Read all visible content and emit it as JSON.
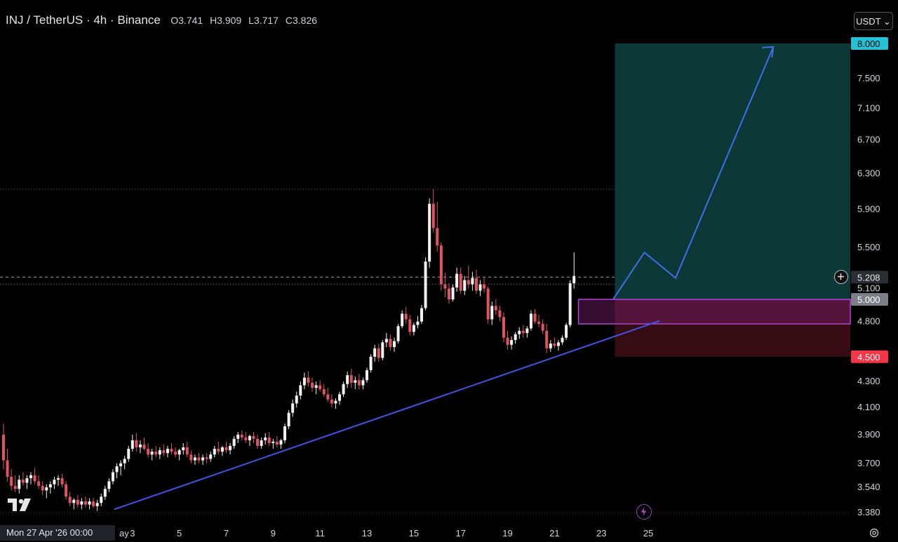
{
  "header": {
    "symbol": "INJ / TetherUS · 4h · Binance",
    "open_label": "O",
    "open": "3.741",
    "high_label": "H",
    "high": "3.909",
    "low_label": "L",
    "low": "3.717",
    "close_label": "C",
    "close": "3.826"
  },
  "currency_selector": "USDT ⌄",
  "crosshair_date": "Mon 27 Apr '26   00:00",
  "colors": {
    "up": "#f2f2f2",
    "down": "#e0535f",
    "trendline": "#3f55e8",
    "target_zone": "#0d3b3a",
    "stop_zone": "#3a0d14",
    "entry_zone_border": "#b044d6",
    "projection": "#3d6fe8",
    "target_badge": "#22c3d6",
    "stop_badge": "#f23645"
  },
  "icons": [
    "tradingview-logo-icon",
    "flash-icon",
    "add-alert-icon",
    "settings-gear-icon"
  ],
  "chart_data": {
    "type": "candlestick",
    "timeframe": "4h",
    "y_scale": "log",
    "ylim": [
      3.35,
      8.15
    ],
    "xlim": [
      27.0,
      26.0
    ],
    "y_ticks": [
      "8.000",
      "7.500",
      "7.100",
      "6.700",
      "6.300",
      "5.900",
      "5.500",
      "5.208",
      "5.100",
      "5.000",
      "4.800",
      "4.500",
      "4.300",
      "4.100",
      "3.900",
      "3.700",
      "3.540",
      "3.380"
    ],
    "x_ticks": [
      {
        "label": "ay",
        "day": 1
      },
      {
        "label": "3",
        "day": 3
      },
      {
        "label": "5",
        "day": 5
      },
      {
        "label": "7",
        "day": 7
      },
      {
        "label": "9",
        "day": 9
      },
      {
        "label": "11",
        "day": 11
      },
      {
        "label": "13",
        "day": 13
      },
      {
        "label": "15",
        "day": 15
      },
      {
        "label": "17",
        "day": 17
      },
      {
        "label": "19",
        "day": 19
      },
      {
        "label": "21",
        "day": 21
      },
      {
        "label": "23",
        "day": 23
      },
      {
        "label": "25",
        "day": 25
      }
    ],
    "current_price": "5.208",
    "candles": [
      {
        "o": 3.9,
        "h": 3.98,
        "l": 3.66,
        "c": 3.72
      },
      {
        "o": 3.72,
        "h": 3.8,
        "l": 3.58,
        "c": 3.61
      },
      {
        "o": 3.61,
        "h": 3.66,
        "l": 3.52,
        "c": 3.55
      },
      {
        "o": 3.55,
        "h": 3.62,
        "l": 3.51,
        "c": 3.53
      },
      {
        "o": 3.53,
        "h": 3.62,
        "l": 3.5,
        "c": 3.59
      },
      {
        "o": 3.59,
        "h": 3.64,
        "l": 3.55,
        "c": 3.57
      },
      {
        "o": 3.57,
        "h": 3.62,
        "l": 3.53,
        "c": 3.6
      },
      {
        "o": 3.6,
        "h": 3.64,
        "l": 3.56,
        "c": 3.62
      },
      {
        "o": 3.62,
        "h": 3.67,
        "l": 3.56,
        "c": 3.58
      },
      {
        "o": 3.58,
        "h": 3.62,
        "l": 3.53,
        "c": 3.55
      },
      {
        "o": 3.55,
        "h": 3.58,
        "l": 3.49,
        "c": 3.52
      },
      {
        "o": 3.52,
        "h": 3.56,
        "l": 3.47,
        "c": 3.54
      },
      {
        "o": 3.54,
        "h": 3.58,
        "l": 3.5,
        "c": 3.56
      },
      {
        "o": 3.56,
        "h": 3.61,
        "l": 3.53,
        "c": 3.59
      },
      {
        "o": 3.59,
        "h": 3.62,
        "l": 3.55,
        "c": 3.6
      },
      {
        "o": 3.6,
        "h": 3.63,
        "l": 3.54,
        "c": 3.56
      },
      {
        "o": 3.56,
        "h": 3.58,
        "l": 3.46,
        "c": 3.48
      },
      {
        "o": 3.48,
        "h": 3.51,
        "l": 3.42,
        "c": 3.44
      },
      {
        "o": 3.44,
        "h": 3.47,
        "l": 3.4,
        "c": 3.46
      },
      {
        "o": 3.46,
        "h": 3.49,
        "l": 3.41,
        "c": 3.43
      },
      {
        "o": 3.43,
        "h": 3.47,
        "l": 3.4,
        "c": 3.45
      },
      {
        "o": 3.45,
        "h": 3.48,
        "l": 3.41,
        "c": 3.43
      },
      {
        "o": 3.43,
        "h": 3.47,
        "l": 3.4,
        "c": 3.45
      },
      {
        "o": 3.45,
        "h": 3.47,
        "l": 3.41,
        "c": 3.42
      },
      {
        "o": 3.42,
        "h": 3.46,
        "l": 3.39,
        "c": 3.44
      },
      {
        "o": 3.44,
        "h": 3.5,
        "l": 3.42,
        "c": 3.48
      },
      {
        "o": 3.48,
        "h": 3.55,
        "l": 3.46,
        "c": 3.53
      },
      {
        "o": 3.53,
        "h": 3.6,
        "l": 3.51,
        "c": 3.58
      },
      {
        "o": 3.58,
        "h": 3.66,
        "l": 3.56,
        "c": 3.64
      },
      {
        "o": 3.64,
        "h": 3.7,
        "l": 3.6,
        "c": 3.68
      },
      {
        "o": 3.68,
        "h": 3.72,
        "l": 3.62,
        "c": 3.7
      },
      {
        "o": 3.7,
        "h": 3.75,
        "l": 3.66,
        "c": 3.73
      },
      {
        "o": 3.73,
        "h": 3.82,
        "l": 3.71,
        "c": 3.8
      },
      {
        "o": 3.8,
        "h": 3.9,
        "l": 3.78,
        "c": 3.86
      },
      {
        "o": 3.86,
        "h": 3.91,
        "l": 3.78,
        "c": 3.81
      },
      {
        "o": 3.81,
        "h": 3.86,
        "l": 3.77,
        "c": 3.83
      },
      {
        "o": 3.83,
        "h": 3.88,
        "l": 3.79,
        "c": 3.8
      },
      {
        "o": 3.8,
        "h": 3.84,
        "l": 3.74,
        "c": 3.76
      },
      {
        "o": 3.76,
        "h": 3.8,
        "l": 3.72,
        "c": 3.78
      },
      {
        "o": 3.78,
        "h": 3.82,
        "l": 3.74,
        "c": 3.76
      },
      {
        "o": 3.76,
        "h": 3.81,
        "l": 3.73,
        "c": 3.79
      },
      {
        "o": 3.79,
        "h": 3.83,
        "l": 3.75,
        "c": 3.77
      },
      {
        "o": 3.77,
        "h": 3.82,
        "l": 3.74,
        "c": 3.8
      },
      {
        "o": 3.8,
        "h": 3.84,
        "l": 3.76,
        "c": 3.78
      },
      {
        "o": 3.78,
        "h": 3.81,
        "l": 3.74,
        "c": 3.76
      },
      {
        "o": 3.76,
        "h": 3.8,
        "l": 3.72,
        "c": 3.79
      },
      {
        "o": 3.79,
        "h": 3.84,
        "l": 3.76,
        "c": 3.81
      },
      {
        "o": 3.81,
        "h": 3.85,
        "l": 3.74,
        "c": 3.76
      },
      {
        "o": 3.76,
        "h": 3.79,
        "l": 3.7,
        "c": 3.72
      },
      {
        "o": 3.72,
        "h": 3.76,
        "l": 3.69,
        "c": 3.74
      },
      {
        "o": 3.74,
        "h": 3.77,
        "l": 3.7,
        "c": 3.72
      },
      {
        "o": 3.72,
        "h": 3.76,
        "l": 3.69,
        "c": 3.74
      },
      {
        "o": 3.74,
        "h": 3.77,
        "l": 3.7,
        "c": 3.73
      },
      {
        "o": 3.73,
        "h": 3.78,
        "l": 3.71,
        "c": 3.76
      },
      {
        "o": 3.76,
        "h": 3.82,
        "l": 3.74,
        "c": 3.8
      },
      {
        "o": 3.8,
        "h": 3.85,
        "l": 3.76,
        "c": 3.78
      },
      {
        "o": 3.78,
        "h": 3.82,
        "l": 3.75,
        "c": 3.81
      },
      {
        "o": 3.81,
        "h": 3.85,
        "l": 3.77,
        "c": 3.79
      },
      {
        "o": 3.79,
        "h": 3.84,
        "l": 3.76,
        "c": 3.82
      },
      {
        "o": 3.82,
        "h": 3.89,
        "l": 3.8,
        "c": 3.87
      },
      {
        "o": 3.87,
        "h": 3.92,
        "l": 3.84,
        "c": 3.9
      },
      {
        "o": 3.9,
        "h": 3.93,
        "l": 3.86,
        "c": 3.88
      },
      {
        "o": 3.88,
        "h": 3.92,
        "l": 3.84,
        "c": 3.86
      },
      {
        "o": 3.86,
        "h": 3.9,
        "l": 3.82,
        "c": 3.89
      },
      {
        "o": 3.89,
        "h": 3.92,
        "l": 3.84,
        "c": 3.87
      },
      {
        "o": 3.87,
        "h": 3.9,
        "l": 3.8,
        "c": 3.82
      },
      {
        "o": 3.82,
        "h": 3.88,
        "l": 3.8,
        "c": 3.86
      },
      {
        "o": 3.86,
        "h": 3.91,
        "l": 3.83,
        "c": 3.88
      },
      {
        "o": 3.88,
        "h": 3.92,
        "l": 3.82,
        "c": 3.84
      },
      {
        "o": 3.84,
        "h": 3.87,
        "l": 3.8,
        "c": 3.85
      },
      {
        "o": 3.85,
        "h": 3.89,
        "l": 3.81,
        "c": 3.83
      },
      {
        "o": 3.83,
        "h": 3.87,
        "l": 3.8,
        "c": 3.86
      },
      {
        "o": 3.86,
        "h": 3.98,
        "l": 3.84,
        "c": 3.96
      },
      {
        "o": 3.96,
        "h": 4.08,
        "l": 3.94,
        "c": 4.06
      },
      {
        "o": 4.06,
        "h": 4.16,
        "l": 4.03,
        "c": 4.13
      },
      {
        "o": 4.13,
        "h": 4.22,
        "l": 4.1,
        "c": 4.19
      },
      {
        "o": 4.19,
        "h": 4.3,
        "l": 4.16,
        "c": 4.27
      },
      {
        "o": 4.27,
        "h": 4.37,
        "l": 4.24,
        "c": 4.33
      },
      {
        "o": 4.33,
        "h": 4.38,
        "l": 4.26,
        "c": 4.29
      },
      {
        "o": 4.29,
        "h": 4.33,
        "l": 4.22,
        "c": 4.25
      },
      {
        "o": 4.25,
        "h": 4.3,
        "l": 4.2,
        "c": 4.27
      },
      {
        "o": 4.27,
        "h": 4.31,
        "l": 4.22,
        "c": 4.24
      },
      {
        "o": 4.24,
        "h": 4.28,
        "l": 4.18,
        "c": 4.2
      },
      {
        "o": 4.2,
        "h": 4.25,
        "l": 4.14,
        "c": 4.16
      },
      {
        "o": 4.16,
        "h": 4.2,
        "l": 4.1,
        "c": 4.13
      },
      {
        "o": 4.13,
        "h": 4.17,
        "l": 4.09,
        "c": 4.15
      },
      {
        "o": 4.15,
        "h": 4.22,
        "l": 4.12,
        "c": 4.2
      },
      {
        "o": 4.2,
        "h": 4.3,
        "l": 4.18,
        "c": 4.28
      },
      {
        "o": 4.28,
        "h": 4.38,
        "l": 4.25,
        "c": 4.35
      },
      {
        "o": 4.35,
        "h": 4.4,
        "l": 4.25,
        "c": 4.29
      },
      {
        "o": 4.29,
        "h": 4.34,
        "l": 4.24,
        "c": 4.31
      },
      {
        "o": 4.31,
        "h": 4.36,
        "l": 4.24,
        "c": 4.27
      },
      {
        "o": 4.27,
        "h": 4.33,
        "l": 4.24,
        "c": 4.31
      },
      {
        "o": 4.31,
        "h": 4.41,
        "l": 4.29,
        "c": 4.39
      },
      {
        "o": 4.39,
        "h": 4.52,
        "l": 4.37,
        "c": 4.5
      },
      {
        "o": 4.5,
        "h": 4.6,
        "l": 4.46,
        "c": 4.57
      },
      {
        "o": 4.57,
        "h": 4.61,
        "l": 4.46,
        "c": 4.49
      },
      {
        "o": 4.49,
        "h": 4.64,
        "l": 4.47,
        "c": 4.62
      },
      {
        "o": 4.62,
        "h": 4.7,
        "l": 4.58,
        "c": 4.65
      },
      {
        "o": 4.65,
        "h": 4.69,
        "l": 4.55,
        "c": 4.58
      },
      {
        "o": 4.58,
        "h": 4.66,
        "l": 4.54,
        "c": 4.63
      },
      {
        "o": 4.63,
        "h": 4.78,
        "l": 4.61,
        "c": 4.76
      },
      {
        "o": 4.76,
        "h": 4.9,
        "l": 4.74,
        "c": 4.87
      },
      {
        "o": 4.87,
        "h": 4.93,
        "l": 4.78,
        "c": 4.82
      },
      {
        "o": 4.82,
        "h": 4.86,
        "l": 4.68,
        "c": 4.71
      },
      {
        "o": 4.71,
        "h": 4.79,
        "l": 4.68,
        "c": 4.77
      },
      {
        "o": 4.77,
        "h": 4.85,
        "l": 4.74,
        "c": 4.8
      },
      {
        "o": 4.8,
        "h": 4.95,
        "l": 4.78,
        "c": 4.92
      },
      {
        "o": 4.92,
        "h": 5.4,
        "l": 4.9,
        "c": 5.36
      },
      {
        "o": 5.36,
        "h": 6.02,
        "l": 5.3,
        "c": 5.96
      },
      {
        "o": 5.96,
        "h": 6.12,
        "l": 5.65,
        "c": 5.7
      },
      {
        "o": 5.7,
        "h": 5.98,
        "l": 5.46,
        "c": 5.52
      },
      {
        "o": 5.52,
        "h": 5.55,
        "l": 5.08,
        "c": 5.14
      },
      {
        "o": 5.14,
        "h": 5.25,
        "l": 5.02,
        "c": 5.1
      },
      {
        "o": 5.1,
        "h": 5.15,
        "l": 4.96,
        "c": 5.0
      },
      {
        "o": 5.0,
        "h": 5.14,
        "l": 4.98,
        "c": 5.11
      },
      {
        "o": 5.11,
        "h": 5.3,
        "l": 5.07,
        "c": 5.24
      },
      {
        "o": 5.24,
        "h": 5.3,
        "l": 5.05,
        "c": 5.08
      },
      {
        "o": 5.08,
        "h": 5.22,
        "l": 5.04,
        "c": 5.18
      },
      {
        "o": 5.18,
        "h": 5.32,
        "l": 5.1,
        "c": 5.14
      },
      {
        "o": 5.14,
        "h": 5.26,
        "l": 5.08,
        "c": 5.2
      },
      {
        "o": 5.2,
        "h": 5.28,
        "l": 5.05,
        "c": 5.08
      },
      {
        "o": 5.08,
        "h": 5.18,
        "l": 5.03,
        "c": 5.14
      },
      {
        "o": 5.14,
        "h": 5.2,
        "l": 5.06,
        "c": 5.1
      },
      {
        "o": 5.1,
        "h": 5.12,
        "l": 4.78,
        "c": 4.82
      },
      {
        "o": 4.82,
        "h": 4.98,
        "l": 4.77,
        "c": 4.94
      },
      {
        "o": 4.94,
        "h": 5.0,
        "l": 4.86,
        "c": 4.9
      },
      {
        "o": 4.9,
        "h": 4.94,
        "l": 4.8,
        "c": 4.84
      },
      {
        "o": 4.84,
        "h": 4.88,
        "l": 4.62,
        "c": 4.66
      },
      {
        "o": 4.66,
        "h": 4.72,
        "l": 4.56,
        "c": 4.6
      },
      {
        "o": 4.6,
        "h": 4.67,
        "l": 4.56,
        "c": 4.64
      },
      {
        "o": 4.64,
        "h": 4.71,
        "l": 4.61,
        "c": 4.69
      },
      {
        "o": 4.69,
        "h": 4.75,
        "l": 4.65,
        "c": 4.72
      },
      {
        "o": 4.72,
        "h": 4.77,
        "l": 4.66,
        "c": 4.7
      },
      {
        "o": 4.7,
        "h": 4.76,
        "l": 4.66,
        "c": 4.74
      },
      {
        "o": 4.74,
        "h": 4.9,
        "l": 4.72,
        "c": 4.87
      },
      {
        "o": 4.87,
        "h": 4.91,
        "l": 4.78,
        "c": 4.8
      },
      {
        "o": 4.8,
        "h": 4.86,
        "l": 4.75,
        "c": 4.78
      },
      {
        "o": 4.78,
        "h": 4.82,
        "l": 4.69,
        "c": 4.72
      },
      {
        "o": 4.72,
        "h": 4.78,
        "l": 4.53,
        "c": 4.57
      },
      {
        "o": 4.57,
        "h": 4.64,
        "l": 4.54,
        "c": 4.61
      },
      {
        "o": 4.61,
        "h": 4.66,
        "l": 4.57,
        "c": 4.59
      },
      {
        "o": 4.59,
        "h": 4.64,
        "l": 4.55,
        "c": 4.62
      },
      {
        "o": 4.62,
        "h": 4.68,
        "l": 4.6,
        "c": 4.66
      },
      {
        "o": 4.66,
        "h": 4.79,
        "l": 4.64,
        "c": 4.77
      },
      {
        "o": 4.77,
        "h": 5.18,
        "l": 4.75,
        "c": 5.15
      },
      {
        "o": 5.15,
        "h": 5.45,
        "l": 5.1,
        "c": 5.22
      }
    ],
    "trendline": {
      "from": {
        "i": 26,
        "price": 3.4
      },
      "to": {
        "i": 158,
        "price": 4.63
      }
    },
    "position": {
      "entry_zone": {
        "top": 5.0,
        "bottom": 4.78,
        "from_i": 143
      },
      "target": "8.000",
      "entry": "5.000",
      "stop": "4.500",
      "target_price": 8.0,
      "entry_price": 5.0,
      "stop_price": 4.5
    },
    "projection": [
      {
        "i": 156,
        "price": 5.0
      },
      {
        "i": 164,
        "price": 5.45
      },
      {
        "i": 172,
        "price": 5.2
      },
      {
        "i": 197,
        "price": 7.95
      }
    ],
    "horizontal_levels": [
      6.12,
      5.208,
      5.14
    ]
  }
}
